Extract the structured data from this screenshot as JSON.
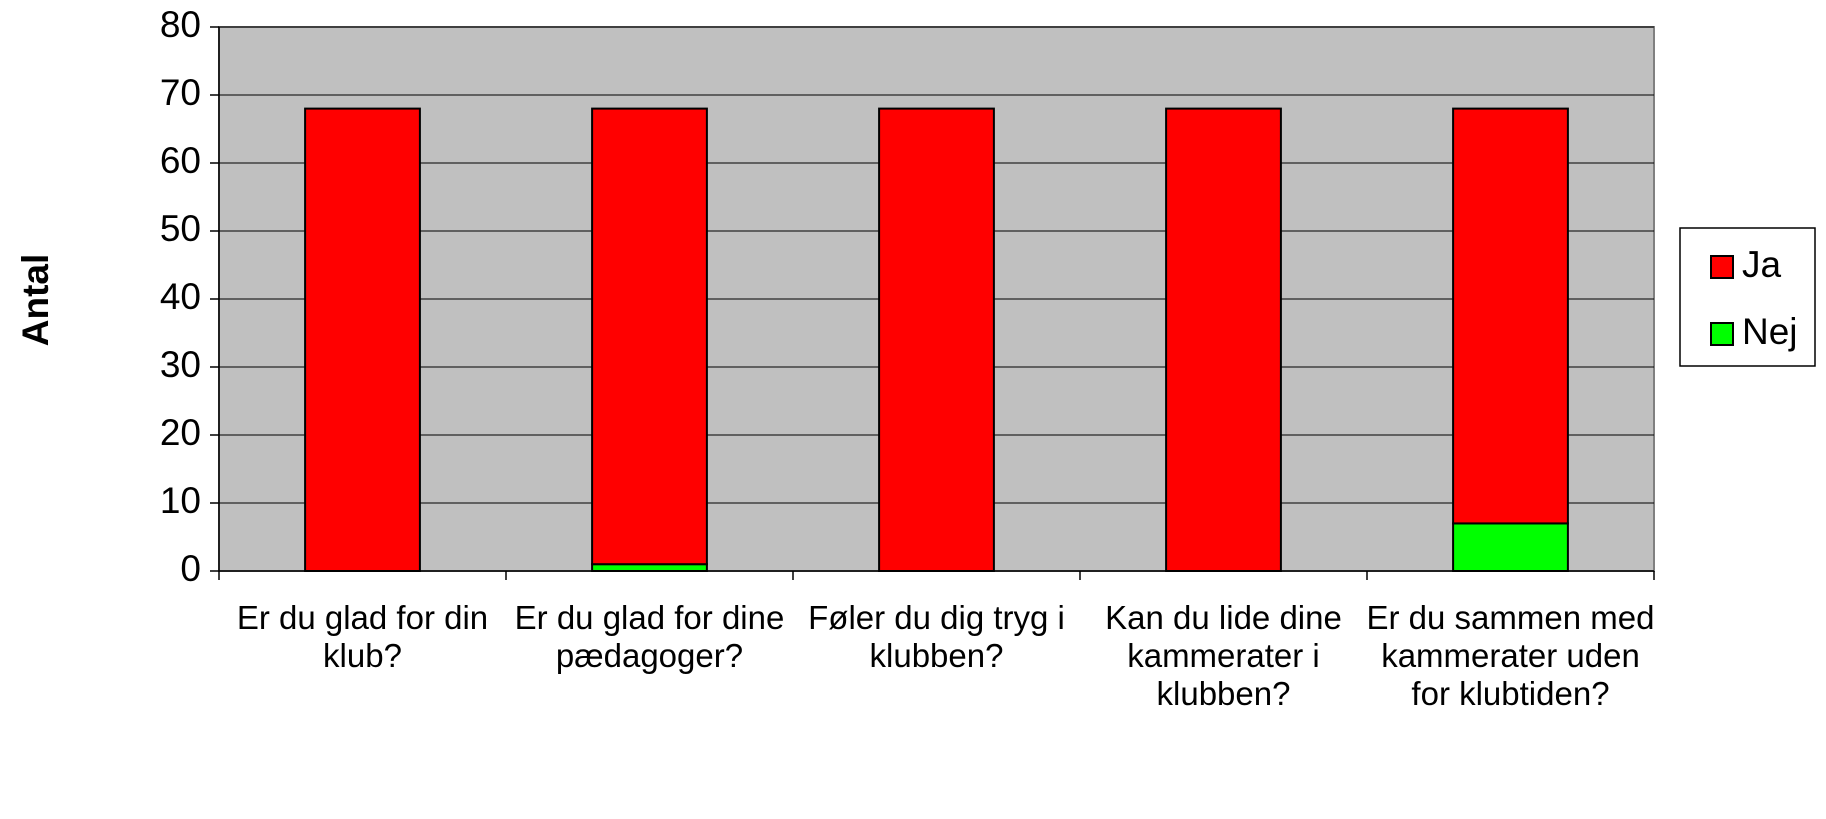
{
  "chart_data": {
    "type": "bar",
    "stacked": true,
    "ylabel": "Antal",
    "categories": [
      "Er du glad for din klub?",
      "Er du glad for dine pædagoger?",
      "Føler du dig tryg i klubben?",
      "Kan du lide dine kammerater i klubben?",
      "Er du sammen med kammerater uden for klubtiden?"
    ],
    "series": [
      {
        "name": "Ja",
        "color": "#ff0000",
        "values": [
          68,
          67,
          68,
          68,
          61
        ]
      },
      {
        "name": "Nej",
        "color": "#00ff00",
        "values": [
          0,
          1,
          0,
          0,
          7
        ]
      }
    ],
    "ylim": [
      0,
      80
    ],
    "yticks": [
      0,
      10,
      20,
      30,
      40,
      50,
      60,
      70,
      80
    ],
    "grid": true,
    "plot_background": "#c0c0c0",
    "legend": "right"
  }
}
